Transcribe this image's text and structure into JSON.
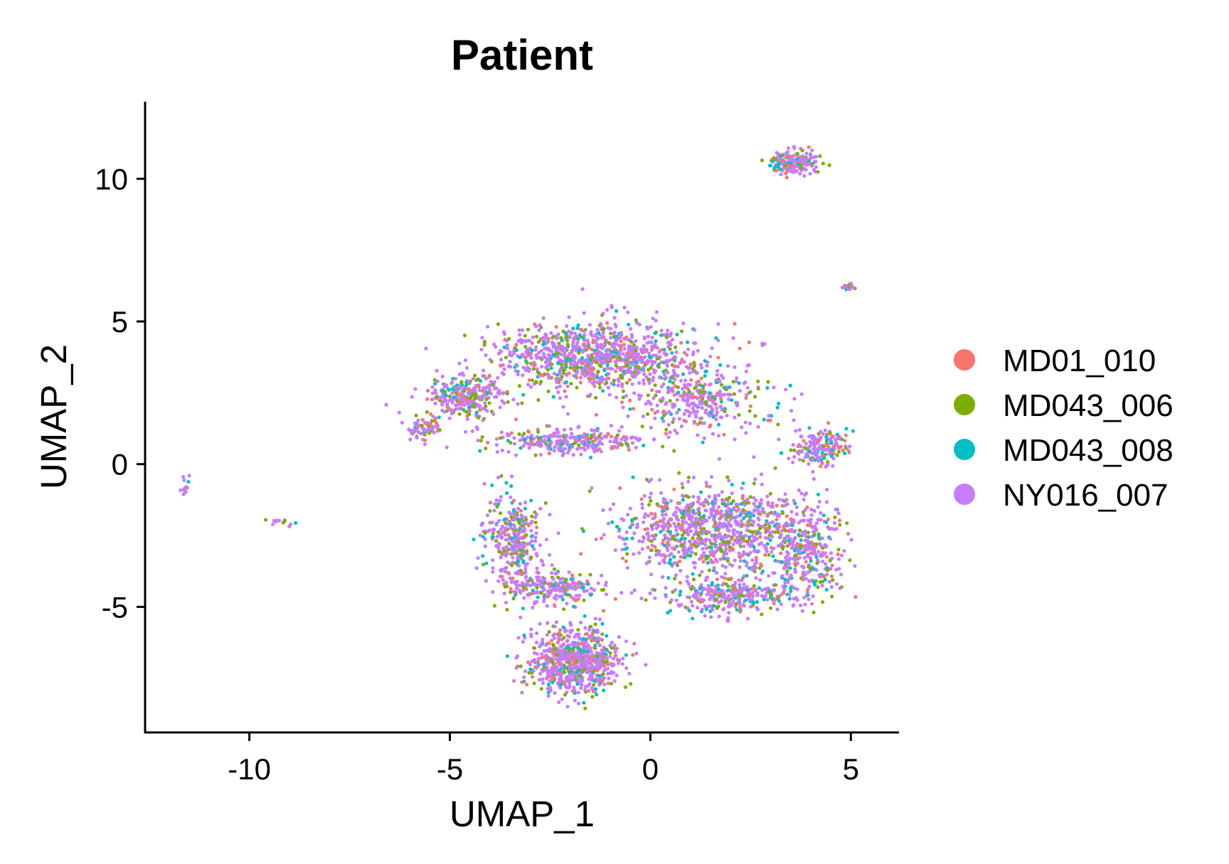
{
  "chart_data": {
    "type": "scatter",
    "title": "Patient",
    "xlabel": "UMAP_1",
    "ylabel": "UMAP_2",
    "xlim": [
      -12.6,
      6.2
    ],
    "ylim": [
      -9.4,
      12.7
    ],
    "xticks": [
      -10,
      -5,
      0,
      5
    ],
    "xtick_labels": [
      "-10",
      "-5",
      "0",
      "5"
    ],
    "yticks": [
      -5,
      0,
      5,
      10
    ],
    "ytick_labels": [
      "-5",
      "0",
      "5",
      "10"
    ],
    "grid": false,
    "legend_position": "right",
    "series": [
      {
        "name": "MD01_010",
        "color": "#F8766D"
      },
      {
        "name": "MD043_006",
        "color": "#7CAE00"
      },
      {
        "name": "MD043_008",
        "color": "#00BFC4"
      },
      {
        "name": "NY016_007",
        "color": "#C77CFF"
      }
    ],
    "clusters": [
      {
        "center": [
          -1.4,
          3.8
        ],
        "spread": [
          2.0,
          1.0
        ],
        "weight": 0.16
      },
      {
        "center": [
          -4.6,
          2.4
        ],
        "spread": [
          0.8,
          0.6
        ],
        "weight": 0.05
      },
      {
        "center": [
          -5.6,
          1.2
        ],
        "spread": [
          0.35,
          0.35
        ],
        "weight": 0.012
      },
      {
        "center": [
          -2.0,
          0.8
        ],
        "spread": [
          1.6,
          0.35
        ],
        "weight": 0.05
      },
      {
        "center": [
          1.2,
          2.4
        ],
        "spread": [
          1.4,
          1.1
        ],
        "weight": 0.06
      },
      {
        "center": [
          4.2,
          0.6
        ],
        "spread": [
          0.6,
          0.6
        ],
        "weight": 0.03
      },
      {
        "center": [
          1.6,
          -2.3
        ],
        "spread": [
          2.0,
          1.2
        ],
        "weight": 0.16
      },
      {
        "center": [
          3.9,
          -3.2
        ],
        "spread": [
          0.75,
          1.4
        ],
        "weight": 0.05
      },
      {
        "center": [
          2.0,
          -4.6
        ],
        "spread": [
          1.4,
          0.5
        ],
        "weight": 0.05
      },
      {
        "center": [
          -3.4,
          -2.5
        ],
        "spread": [
          0.65,
          1.2
        ],
        "weight": 0.05
      },
      {
        "center": [
          -2.4,
          -4.3
        ],
        "spread": [
          1.0,
          0.5
        ],
        "weight": 0.04
      },
      {
        "center": [
          -1.9,
          -6.9
        ],
        "spread": [
          0.95,
          0.95
        ],
        "weight": 0.12
      },
      {
        "center": [
          3.55,
          10.55
        ],
        "spread": [
          0.5,
          0.35
        ],
        "weight": 0.03
      },
      {
        "center": [
          4.95,
          6.2
        ],
        "spread": [
          0.13,
          0.09
        ],
        "weight": 0.004
      },
      {
        "center": [
          -11.6,
          -0.7
        ],
        "spread": [
          0.08,
          0.35
        ],
        "weight": 0.002
      },
      {
        "center": [
          -9.2,
          -2.05
        ],
        "spread": [
          0.35,
          0.1
        ],
        "weight": 0.002
      }
    ]
  }
}
